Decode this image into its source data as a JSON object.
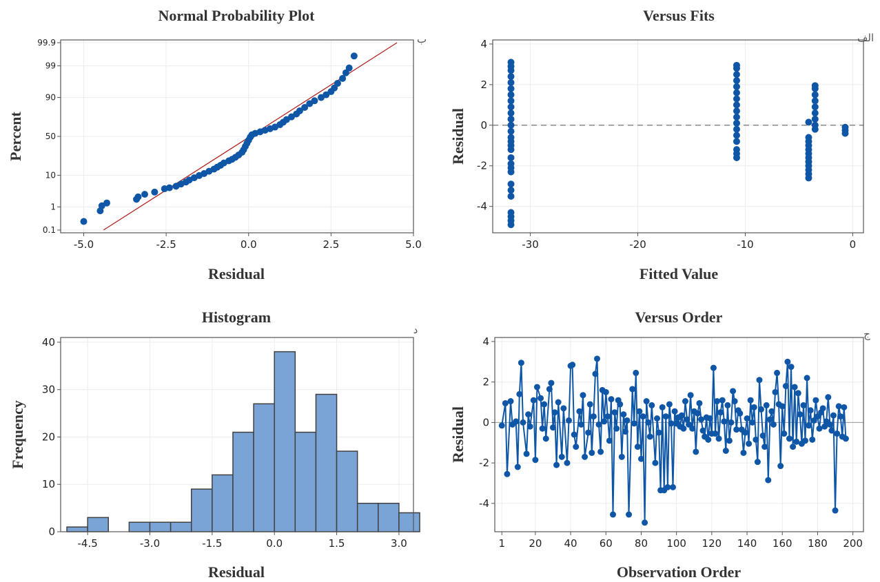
{
  "chart_data": [
    {
      "panel": "probability",
      "type": "scatter",
      "title": "Normal Probability Plot",
      "xlabel": "Residual",
      "ylabel": "Percent",
      "corner_mark": "ب",
      "xlim": [
        -5.7,
        5.0
      ],
      "x_ticks": [
        -5.0,
        -2.5,
        0.0,
        2.5,
        5.0
      ],
      "x_tick_labels": [
        "-5.0",
        "-2.5",
        "0.0",
        "2.5",
        "5.0"
      ],
      "y_ticks": [
        0.1,
        1,
        10,
        50,
        90,
        99,
        99.9
      ],
      "y_tick_labels": [
        "0.1",
        "1",
        "10",
        "50",
        "90",
        "99",
        "99.9"
      ],
      "y_scale": "normal-probability",
      "fit_line": {
        "x": [
          -4.4,
          4.5
        ],
        "percent": [
          0.1,
          99.9
        ],
        "color": "#b22222"
      },
      "point_color": "#0f57a6",
      "points": [
        [
          -5.0,
          0.25
        ],
        [
          -4.5,
          0.7
        ],
        [
          -4.45,
          1.1
        ],
        [
          -4.3,
          1.4
        ],
        [
          -3.4,
          1.9
        ],
        [
          -3.35,
          2.3
        ],
        [
          -3.15,
          2.8
        ],
        [
          -2.85,
          3.3
        ],
        [
          -2.55,
          4.2
        ],
        [
          -2.4,
          4.5
        ],
        [
          -2.2,
          5.0
        ],
        [
          -2.05,
          5.8
        ],
        [
          -1.9,
          6.6
        ],
        [
          -1.8,
          7.5
        ],
        [
          -1.65,
          8.6
        ],
        [
          -1.5,
          9.8
        ],
        [
          -1.35,
          11
        ],
        [
          -1.2,
          12.5
        ],
        [
          -1.05,
          14
        ],
        [
          -0.95,
          15.5
        ],
        [
          -0.85,
          17
        ],
        [
          -0.75,
          19
        ],
        [
          -0.6,
          21
        ],
        [
          -0.5,
          22.5
        ],
        [
          -0.4,
          24.5
        ],
        [
          -0.3,
          27
        ],
        [
          -0.2,
          30
        ],
        [
          -0.15,
          33
        ],
        [
          -0.1,
          37
        ],
        [
          -0.05,
          41
        ],
        [
          0.0,
          45
        ],
        [
          0.05,
          49
        ],
        [
          0.1,
          52
        ],
        [
          0.2,
          54
        ],
        [
          0.35,
          56
        ],
        [
          0.5,
          58
        ],
        [
          0.65,
          60
        ],
        [
          0.8,
          62
        ],
        [
          0.95,
          65
        ],
        [
          1.05,
          68
        ],
        [
          1.15,
          71
        ],
        [
          1.3,
          74
        ],
        [
          1.45,
          77
        ],
        [
          1.55,
          80
        ],
        [
          1.7,
          83
        ],
        [
          1.85,
          86
        ],
        [
          2.0,
          88
        ],
        [
          2.2,
          90
        ],
        [
          2.35,
          91.5
        ],
        [
          2.5,
          93
        ],
        [
          2.6,
          94.5
        ],
        [
          2.7,
          96
        ],
        [
          2.85,
          97.2
        ],
        [
          2.95,
          98.2
        ],
        [
          3.05,
          98.8
        ],
        [
          3.2,
          99.6
        ]
      ]
    },
    {
      "panel": "fits",
      "type": "scatter",
      "title": "Versus Fits",
      "xlabel": "Fitted Value",
      "ylabel": "Residual",
      "corner_mark": "الف",
      "xlim": [
        -33.5,
        1.0
      ],
      "ylim": [
        -5.3,
        4.2
      ],
      "x_ticks": [
        -30,
        -20,
        -10,
        0
      ],
      "x_tick_labels": [
        "-30",
        "-20",
        "-10",
        "0"
      ],
      "y_ticks": [
        -4,
        -2,
        0,
        2,
        4
      ],
      "y_tick_labels": [
        "-4",
        "-2",
        "0",
        "2",
        "4"
      ],
      "reference_line": 0,
      "point_color": "#0f57a6",
      "groups": [
        {
          "fitted": -31.8,
          "residuals": [
            -4.9,
            -4.7,
            -4.5,
            -4.3,
            -3.5,
            -3.2,
            -2.9,
            -2.3,
            -2.1,
            -1.9,
            -1.6,
            -1.2,
            -1.0,
            -0.8,
            -0.6,
            -0.3,
            0.0,
            0.3,
            0.6,
            0.9,
            1.2,
            1.5,
            1.8,
            2.1,
            2.4,
            2.7,
            2.9,
            3.1
          ]
        },
        {
          "fitted": -10.8,
          "residuals": [
            -1.6,
            -1.4,
            -1.2,
            -0.8,
            -0.5,
            -0.2,
            0.1,
            0.4,
            0.7,
            1.0,
            1.3,
            1.6,
            1.9,
            2.2,
            2.5,
            2.8,
            2.95
          ]
        },
        {
          "fitted": -4.1,
          "residuals": [
            -2.6,
            -2.4,
            -2.2,
            -2.0,
            -1.8,
            -1.6,
            -1.4,
            -1.2,
            -1.0,
            -0.8,
            -0.6,
            0.15
          ]
        },
        {
          "fitted": -3.5,
          "residuals": [
            -0.2,
            0.0,
            0.3,
            0.6,
            0.9,
            1.2,
            1.5,
            1.8,
            1.95
          ]
        },
        {
          "fitted": -0.7,
          "residuals": [
            -0.4,
            -0.25,
            -0.1
          ]
        }
      ]
    },
    {
      "panel": "histogram",
      "type": "bar",
      "title": "Histogram",
      "xlabel": "Residual",
      "ylabel": "Frequency",
      "corner_mark": "د",
      "bin_width": 0.5,
      "bin_start": -5.0,
      "xlim": [
        -5.15,
        3.35
      ],
      "ylim": [
        0,
        41
      ],
      "x_ticks": [
        -4.5,
        -3.0,
        -1.5,
        0.0,
        1.5,
        3.0
      ],
      "x_tick_labels": [
        "-4.5",
        "-3.0",
        "-1.5",
        "0.0",
        "1.5",
        "3.0"
      ],
      "y_ticks": [
        0,
        10,
        20,
        30,
        40
      ],
      "y_tick_labels": [
        "0",
        "10",
        "20",
        "30",
        "40"
      ],
      "bar_color": "#7aa3d6",
      "bar_edge": "#404040",
      "counts": [
        1,
        3,
        0,
        2,
        2,
        2,
        9,
        12,
        21,
        27,
        38,
        21,
        29,
        17,
        6,
        6,
        4
      ]
    },
    {
      "panel": "order",
      "type": "line",
      "title": "Versus Order",
      "xlabel": "Observation Order",
      "ylabel": "Residual",
      "corner_mark": "ج",
      "xlim": [
        -3,
        206
      ],
      "ylim": [
        -5.4,
        4.2
      ],
      "x_ticks": [
        1,
        20,
        40,
        60,
        80,
        100,
        120,
        140,
        160,
        180,
        200
      ],
      "x_tick_labels": [
        "1",
        "20",
        "40",
        "60",
        "80",
        "100",
        "120",
        "140",
        "160",
        "180",
        "200"
      ],
      "y_ticks": [
        -4,
        -2,
        0,
        2,
        4
      ],
      "y_tick_labels": [
        "-4",
        "-2",
        "0",
        "2",
        "4"
      ],
      "reference_line": 0,
      "line_color": "#0f57a6",
      "points": [
        [
          1,
          -0.15
        ],
        [
          3,
          0.95
        ],
        [
          4,
          -2.55
        ],
        [
          6,
          1.05
        ],
        [
          7,
          -0.1
        ],
        [
          9,
          0.05
        ],
        [
          10,
          -2.2
        ],
        [
          11,
          1.4
        ],
        [
          12,
          2.95
        ],
        [
          13,
          0.0
        ],
        [
          15,
          -1.55
        ],
        [
          16,
          0.4
        ],
        [
          17,
          -0.2
        ],
        [
          19,
          1.1
        ],
        [
          20,
          -1.85
        ],
        [
          21,
          1.75
        ],
        [
          23,
          1.2
        ],
        [
          24,
          -0.3
        ],
        [
          25,
          0.9
        ],
        [
          26,
          -0.8
        ],
        [
          28,
          1.65
        ],
        [
          29,
          1.95
        ],
        [
          30,
          -0.25
        ],
        [
          31,
          0.5
        ],
        [
          32,
          -2.1
        ],
        [
          33,
          1.0
        ],
        [
          35,
          -1.7
        ],
        [
          36,
          0.7
        ],
        [
          38,
          -2.0
        ],
        [
          39,
          0.1
        ],
        [
          40,
          2.8
        ],
        [
          41,
          2.85
        ],
        [
          42,
          -0.6
        ],
        [
          43,
          -1.2
        ],
        [
          45,
          0.55
        ],
        [
          46,
          -0.1
        ],
        [
          47,
          1.35
        ],
        [
          48,
          -1.7
        ],
        [
          50,
          -0.5
        ],
        [
          51,
          0.9
        ],
        [
          52,
          -1.5
        ],
        [
          53,
          0.3
        ],
        [
          54,
          2.4
        ],
        [
          55,
          3.15
        ],
        [
          56,
          -0.1
        ],
        [
          57,
          -1.45
        ],
        [
          58,
          1.6
        ],
        [
          59,
          0.05
        ],
        [
          60,
          1.5
        ],
        [
          61,
          0.3
        ],
        [
          62,
          -0.9
        ],
        [
          63,
          1.15
        ],
        [
          64,
          -4.55
        ],
        [
          65,
          0.5
        ],
        [
          66,
          -0.3
        ],
        [
          67,
          1.1
        ],
        [
          68,
          0.9
        ],
        [
          69,
          -1.7
        ],
        [
          70,
          0.4
        ],
        [
          71,
          -0.45
        ],
        [
          72,
          0.1
        ],
        [
          73,
          -4.55
        ],
        [
          75,
          1.65
        ],
        [
          76,
          -0.05
        ],
        [
          77,
          2.45
        ],
        [
          78,
          -1.2
        ],
        [
          79,
          0.55
        ],
        [
          80,
          -1.8
        ],
        [
          81,
          0.3
        ],
        [
          82,
          -4.95
        ],
        [
          83,
          1.05
        ],
        [
          84,
          0.0
        ],
        [
          85,
          -0.7
        ],
        [
          86,
          0.85
        ],
        [
          88,
          -2.0
        ],
        [
          89,
          0.2
        ],
        [
          90,
          -0.5
        ],
        [
          91,
          -3.35
        ],
        [
          92,
          0.75
        ],
        [
          93,
          -3.35
        ],
        [
          94,
          0.3
        ],
        [
          95,
          -3.2
        ],
        [
          96,
          0.9
        ],
        [
          97,
          -0.05
        ],
        [
          98,
          -3.2
        ],
        [
          99,
          0.55
        ],
        [
          100,
          -0.05
        ],
        [
          101,
          0.25
        ],
        [
          102,
          -0.2
        ],
        [
          103,
          0.35
        ],
        [
          104,
          -0.3
        ],
        [
          105,
          1.05
        ],
        [
          106,
          0.15
        ],
        [
          107,
          -0.1
        ],
        [
          108,
          1.35
        ],
        [
          109,
          -0.3
        ],
        [
          110,
          0.55
        ],
        [
          111,
          -1.45
        ],
        [
          112,
          0.45
        ],
        [
          113,
          0.95
        ],
        [
          114,
          0.15
        ],
        [
          115,
          -0.4
        ],
        [
          116,
          -0.7
        ],
        [
          117,
          0.25
        ],
        [
          118,
          -0.85
        ],
        [
          119,
          0.2
        ],
        [
          120,
          -0.55
        ],
        [
          121,
          2.7
        ],
        [
          122,
          -0.55
        ],
        [
          123,
          1.05
        ],
        [
          124,
          -0.8
        ],
        [
          125,
          0.5
        ],
        [
          126,
          1.1
        ],
        [
          127,
          0.05
        ],
        [
          128,
          -1.4
        ],
        [
          129,
          0.85
        ],
        [
          130,
          -0.9
        ],
        [
          131,
          0.0
        ],
        [
          132,
          1.55
        ],
        [
          133,
          1.05
        ],
        [
          134,
          -0.35
        ],
        [
          135,
          0.6
        ],
        [
          136,
          0.45
        ],
        [
          137,
          -0.35
        ],
        [
          138,
          -1.5
        ],
        [
          139,
          -0.5
        ],
        [
          140,
          0.2
        ],
        [
          141,
          -1.05
        ],
        [
          142,
          1.1
        ],
        [
          143,
          0.0
        ],
        [
          144,
          0.75
        ],
        [
          145,
          -0.85
        ],
        [
          146,
          -1.95
        ],
        [
          147,
          2.1
        ],
        [
          148,
          0.65
        ],
        [
          149,
          -0.65
        ],
        [
          150,
          -1.2
        ],
        [
          151,
          0.85
        ],
        [
          152,
          -2.85
        ],
        [
          153,
          0.15
        ],
        [
          154,
          0.55
        ],
        [
          155,
          -0.1
        ],
        [
          156,
          1.5
        ],
        [
          157,
          2.45
        ],
        [
          158,
          0.9
        ],
        [
          159,
          -2.15
        ],
        [
          160,
          0.8
        ],
        [
          161,
          -0.55
        ],
        [
          162,
          1.8
        ],
        [
          163,
          3.0
        ],
        [
          164,
          -0.8
        ],
        [
          165,
          2.75
        ],
        [
          166,
          -1.2
        ],
        [
          167,
          1.75
        ],
        [
          168,
          -0.95
        ],
        [
          169,
          1.45
        ],
        [
          170,
          0.4
        ],
        [
          171,
          -1.05
        ],
        [
          172,
          0.85
        ],
        [
          173,
          -0.9
        ],
        [
          174,
          2.2
        ],
        [
          175,
          -0.15
        ],
        [
          176,
          0.6
        ],
        [
          177,
          -0.85
        ],
        [
          178,
          0.1
        ],
        [
          179,
          1.1
        ],
        [
          180,
          0.3
        ],
        [
          181,
          -0.3
        ],
        [
          182,
          0.5
        ],
        [
          183,
          0.7
        ],
        [
          184,
          -0.2
        ],
        [
          185,
          0.05
        ],
        [
          186,
          1.25
        ],
        [
          187,
          -0.1
        ],
        [
          188,
          -0.4
        ],
        [
          189,
          0.35
        ],
        [
          190,
          -4.35
        ],
        [
          191,
          -0.55
        ],
        [
          192,
          0.8
        ],
        [
          193,
          0.3
        ],
        [
          194,
          -0.7
        ],
        [
          195,
          0.75
        ],
        [
          196,
          -0.8
        ]
      ]
    }
  ]
}
